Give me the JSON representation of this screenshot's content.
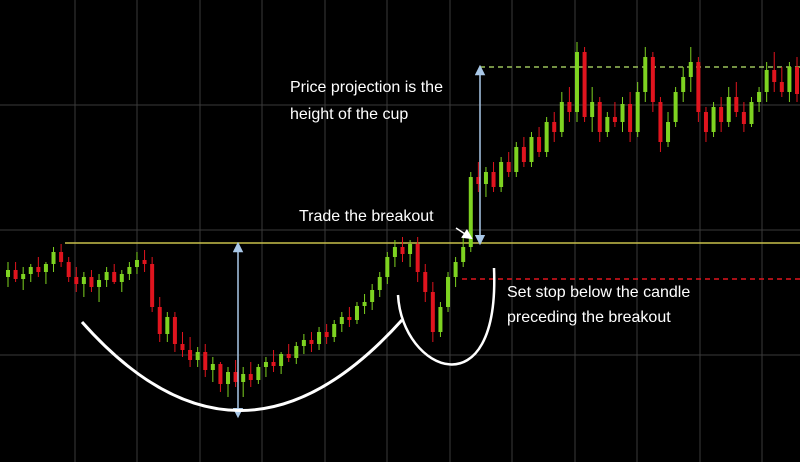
{
  "chart_data": {
    "type": "candlestick",
    "up_color": "#7ed321",
    "down_color": "#e0141e",
    "ylim": [
      0,
      462
    ],
    "ohlc": [
      [
        185,
        200,
        175,
        192
      ],
      [
        192,
        200,
        180,
        183
      ],
      [
        183,
        195,
        172,
        188
      ],
      [
        188,
        198,
        180,
        195
      ],
      [
        195,
        205,
        185,
        190
      ],
      [
        190,
        200,
        178,
        198
      ],
      [
        198,
        215,
        190,
        210
      ],
      [
        210,
        218,
        195,
        200
      ],
      [
        200,
        205,
        180,
        185
      ],
      [
        185,
        195,
        170,
        178
      ],
      [
        178,
        190,
        165,
        185
      ],
      [
        185,
        192,
        170,
        175
      ],
      [
        175,
        188,
        160,
        182
      ],
      [
        182,
        195,
        175,
        190
      ],
      [
        190,
        198,
        178,
        180
      ],
      [
        180,
        192,
        170,
        188
      ],
      [
        188,
        200,
        182,
        195
      ],
      [
        195,
        210,
        188,
        202
      ],
      [
        202,
        212,
        190,
        198
      ],
      [
        198,
        205,
        150,
        155
      ],
      [
        155,
        165,
        120,
        128
      ],
      [
        128,
        150,
        120,
        145
      ],
      [
        145,
        150,
        110,
        118
      ],
      [
        118,
        130,
        105,
        112
      ],
      [
        112,
        125,
        95,
        102
      ],
      [
        102,
        115,
        95,
        110
      ],
      [
        110,
        118,
        85,
        92
      ],
      [
        92,
        105,
        80,
        98
      ],
      [
        98,
        100,
        70,
        78
      ],
      [
        78,
        95,
        65,
        90
      ],
      [
        90,
        102,
        75,
        80
      ],
      [
        80,
        95,
        65,
        88
      ],
      [
        88,
        100,
        75,
        82
      ],
      [
        82,
        98,
        78,
        95
      ],
      [
        95,
        105,
        85,
        100
      ],
      [
        100,
        112,
        90,
        96
      ],
      [
        96,
        110,
        88,
        108
      ],
      [
        108,
        118,
        100,
        104
      ],
      [
        104,
        120,
        98,
        116
      ],
      [
        116,
        128,
        108,
        122
      ],
      [
        122,
        130,
        110,
        118
      ],
      [
        118,
        135,
        112,
        130
      ],
      [
        130,
        138,
        118,
        125
      ],
      [
        125,
        142,
        120,
        138
      ],
      [
        138,
        150,
        130,
        145
      ],
      [
        145,
        155,
        135,
        142
      ],
      [
        142,
        160,
        138,
        156
      ],
      [
        156,
        168,
        148,
        160
      ],
      [
        160,
        178,
        152,
        172
      ],
      [
        172,
        190,
        165,
        185
      ],
      [
        185,
        210,
        178,
        205
      ],
      [
        205,
        222,
        195,
        215
      ],
      [
        215,
        225,
        200,
        208
      ],
      [
        208,
        222,
        195,
        218
      ],
      [
        218,
        225,
        180,
        190
      ],
      [
        190,
        198,
        160,
        170
      ],
      [
        170,
        180,
        120,
        130
      ],
      [
        130,
        160,
        125,
        155
      ],
      [
        155,
        190,
        150,
        185
      ],
      [
        185,
        205,
        175,
        200
      ],
      [
        200,
        225,
        195,
        215
      ],
      [
        215,
        290,
        210,
        285
      ],
      [
        285,
        300,
        270,
        278
      ],
      [
        278,
        295,
        265,
        290
      ],
      [
        290,
        300,
        270,
        275
      ],
      [
        275,
        305,
        270,
        300
      ],
      [
        300,
        310,
        285,
        290
      ],
      [
        290,
        320,
        285,
        315
      ],
      [
        315,
        325,
        295,
        300
      ],
      [
        300,
        330,
        295,
        325
      ],
      [
        325,
        335,
        305,
        310
      ],
      [
        310,
        345,
        305,
        340
      ],
      [
        340,
        350,
        320,
        330
      ],
      [
        330,
        370,
        325,
        360
      ],
      [
        360,
        375,
        340,
        350
      ],
      [
        350,
        420,
        340,
        410
      ],
      [
        410,
        415,
        340,
        345
      ],
      [
        345,
        375,
        330,
        360
      ],
      [
        360,
        365,
        320,
        330
      ],
      [
        330,
        350,
        325,
        345
      ],
      [
        345,
        360,
        335,
        340
      ],
      [
        340,
        365,
        330,
        358
      ],
      [
        358,
        370,
        320,
        330
      ],
      [
        330,
        380,
        325,
        370
      ],
      [
        370,
        415,
        360,
        405
      ],
      [
        405,
        410,
        350,
        360
      ],
      [
        360,
        365,
        310,
        320
      ],
      [
        320,
        350,
        315,
        340
      ],
      [
        340,
        375,
        335,
        370
      ],
      [
        370,
        395,
        360,
        385
      ],
      [
        385,
        415,
        370,
        400
      ],
      [
        400,
        405,
        340,
        350
      ],
      [
        350,
        355,
        320,
        330
      ],
      [
        330,
        360,
        325,
        355
      ],
      [
        355,
        365,
        330,
        340
      ],
      [
        340,
        375,
        335,
        365
      ],
      [
        365,
        380,
        345,
        350
      ],
      [
        350,
        360,
        330,
        338
      ],
      [
        338,
        365,
        335,
        360
      ],
      [
        360,
        375,
        350,
        370
      ],
      [
        370,
        400,
        360,
        392
      ],
      [
        392,
        410,
        370,
        380
      ],
      [
        380,
        395,
        365,
        370
      ],
      [
        370,
        400,
        360,
        395
      ],
      [
        395,
        405,
        360,
        368
      ]
    ],
    "levels": [
      {
        "value": 219,
        "color": "#c8bf4a",
        "dashed": false
      },
      {
        "value": 395,
        "color": "#9bc15a",
        "dashed": true
      },
      {
        "value": 183,
        "color": "#e0141e",
        "dashed": true
      }
    ],
    "annotations": {
      "projection": [
        "Price projection is the",
        "height of the cup"
      ],
      "breakout": "Trade the breakout",
      "stop": [
        "Set stop below the candle",
        "preceding the breakout"
      ]
    }
  }
}
